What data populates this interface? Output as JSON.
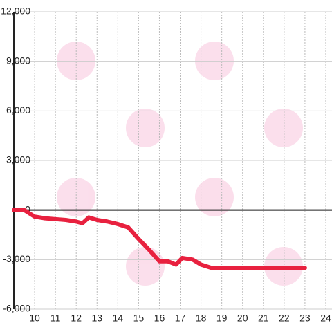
{
  "chart_data": {
    "type": "line",
    "x": [
      9,
      9.5,
      10,
      10.5,
      11,
      11.5,
      12,
      12.3,
      12.6,
      13,
      13.5,
      14,
      14.5,
      15,
      15.5,
      16,
      16.4,
      16.8,
      17.1,
      17.6,
      18,
      18.5,
      23
    ],
    "series": [
      {
        "color": "#e8213f",
        "values": [
          0,
          0,
          -400,
          -500,
          -550,
          -600,
          -700,
          -800,
          -450,
          -600,
          -700,
          -850,
          -1050,
          -1750,
          -2400,
          -3100,
          -3100,
          -3300,
          -2900,
          -3000,
          -3300,
          -3500,
          -3500
        ]
      }
    ],
    "xlim": [
      9,
      24.3
    ],
    "xticks": [
      10,
      11,
      12,
      13,
      14,
      15,
      16,
      17,
      18,
      19,
      20,
      21,
      22,
      23,
      24
    ],
    "ylim": [
      -6000,
      12000
    ],
    "yticks": [
      {
        "value": -6000,
        "label": "-6,000"
      },
      {
        "value": -3000,
        "label": "-3,000"
      },
      0,
      {
        "value": 3000,
        "label": "3,000"
      },
      {
        "value": 6000,
        "label": "6,000"
      },
      {
        "value": 9000,
        "label": "9,000"
      },
      {
        "value": 12000,
        "label": "12,000"
      }
    ],
    "grid": true
  }
}
